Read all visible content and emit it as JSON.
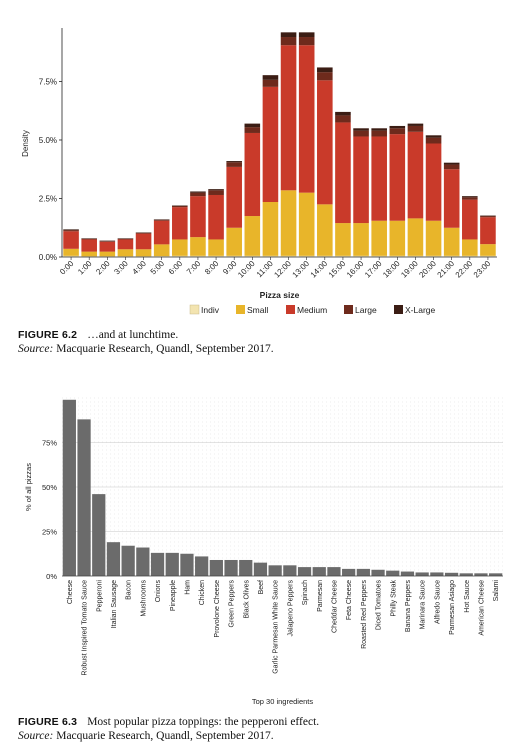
{
  "chart_data": [
    {
      "type": "bar",
      "stacked": true,
      "xlabel": "Pizza size",
      "ylabel": "Density",
      "ylim": [
        0,
        9.7
      ],
      "y_ticks": [
        0,
        2.5,
        5.0,
        7.5
      ],
      "y_tick_labels": [
        "0.0%",
        "2.5%",
        "5.0%",
        "7.5%"
      ],
      "categories": [
        "0:00",
        "1:00",
        "2:00",
        "3:00",
        "4:00",
        "5:00",
        "6:00",
        "7:00",
        "8:00",
        "9:00",
        "10:00",
        "11:00",
        "12:00",
        "13:00",
        "14:00",
        "15:00",
        "16:00",
        "17:00",
        "18:00",
        "19:00",
        "20:00",
        "21:00",
        "22:00",
        "23:00"
      ],
      "legend_position": "bottom",
      "grid": false,
      "series": [
        {
          "name": "Indiv",
          "color": "#f3e4b0",
          "values": [
            0.05,
            0.03,
            0.03,
            0.03,
            0.03,
            0.04,
            0.05,
            0.05,
            0.05,
            0.05,
            0.05,
            0.05,
            0.05,
            0.05,
            0.05,
            0.05,
            0.05,
            0.05,
            0.05,
            0.05,
            0.05,
            0.05,
            0.05,
            0.05
          ]
        },
        {
          "name": "Small",
          "color": "#e8b52a",
          "values": [
            0.3,
            0.2,
            0.2,
            0.3,
            0.3,
            0.5,
            0.7,
            0.8,
            0.7,
            1.2,
            1.7,
            2.3,
            2.8,
            2.7,
            2.2,
            1.4,
            1.4,
            1.5,
            1.5,
            1.6,
            1.5,
            1.2,
            0.7,
            0.5
          ]
        },
        {
          "name": "Medium",
          "color": "#c93a2a",
          "values": [
            0.75,
            0.52,
            0.42,
            0.42,
            0.67,
            1.01,
            1.38,
            1.75,
            1.9,
            2.6,
            3.55,
            4.92,
            6.2,
            6.3,
            5.3,
            4.3,
            3.7,
            3.6,
            3.7,
            3.7,
            3.3,
            2.5,
            1.7,
            1.15
          ]
        },
        {
          "name": "Large",
          "color": "#6e2a1c",
          "values": [
            0.05,
            0.03,
            0.03,
            0.03,
            0.03,
            0.04,
            0.05,
            0.15,
            0.2,
            0.2,
            0.25,
            0.3,
            0.35,
            0.35,
            0.35,
            0.3,
            0.25,
            0.25,
            0.25,
            0.25,
            0.25,
            0.2,
            0.1,
            0.05
          ]
        },
        {
          "name": "X-Large",
          "color": "#3b1d14",
          "values": [
            0.03,
            0.02,
            0.02,
            0.02,
            0.02,
            0.02,
            0.02,
            0.05,
            0.05,
            0.05,
            0.15,
            0.2,
            0.2,
            0.2,
            0.2,
            0.15,
            0.1,
            0.1,
            0.1,
            0.1,
            0.1,
            0.08,
            0.05,
            0.02
          ]
        }
      ]
    },
    {
      "type": "bar",
      "xlabel": "Top 30 ingredients",
      "ylabel": "% of all pizzas",
      "ylim": [
        0,
        100
      ],
      "y_ticks": [
        0,
        25,
        50,
        75
      ],
      "y_tick_labels": [
        "0%",
        "25%",
        "50%",
        "75%"
      ],
      "grid": true,
      "bar_color": "#6b6b6b",
      "categories": [
        "Cheese",
        "Robust Inspired Tomato Sauce",
        "Pepperoni",
        "Italian Sausage",
        "Bacon",
        "Mushrooms",
        "Onions",
        "Pineapple",
        "Ham",
        "Chicken",
        "Provolone Cheese",
        "Green Peppers",
        "Black Olives",
        "Beef",
        "Garlic Parmesan White Sauce",
        "Jalapeno Peppers",
        "Spinach",
        "Parmesan",
        "Cheddar Cheese",
        "Feta Cheese",
        "Roasted Red Peppers",
        "Diced Tomatoes",
        "Philly Steak",
        "Banana Peppers",
        "Marinara Sauce",
        "Alfredo Sauce",
        "Parmesan Asiago",
        "Hot Sauce",
        "American Cheese",
        "Salami"
      ],
      "values": [
        99,
        88,
        46,
        19,
        17,
        16,
        13,
        13,
        12.5,
        11,
        9,
        9,
        9,
        7.5,
        6,
        6,
        5,
        5,
        5,
        4,
        4,
        3.5,
        3,
        2.5,
        2,
        2,
        1.8,
        1.5,
        1.5,
        1.5
      ]
    }
  ],
  "captions": [
    {
      "label": "FIGURE 6.2",
      "text": "…and at lunchtime.",
      "source_label": "Source:",
      "source_text": " Macquarie Research, Quandl, September 2017."
    },
    {
      "label": "FIGURE 6.3",
      "text": "Most popular pizza toppings: the pepperoni effect.",
      "source_label": "Source:",
      "source_text": " Macquarie Research, Quandl, September 2017."
    }
  ]
}
